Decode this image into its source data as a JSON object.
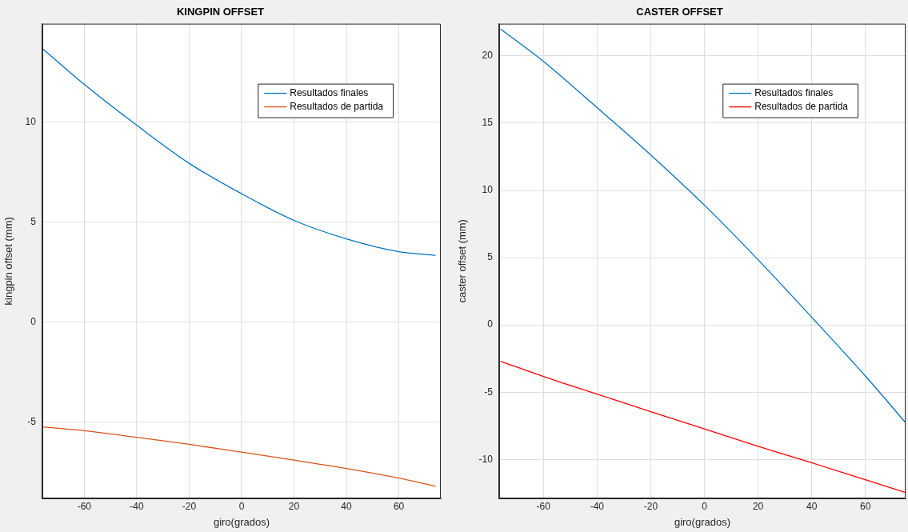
{
  "chart_data": [
    {
      "type": "line",
      "title": "KINGPIN OFFSET",
      "xlabel": "giro(grados)",
      "ylabel": "kingpin offset (mm)",
      "xlim": [
        -76,
        76
      ],
      "ylim": [
        -8.8,
        14.9
      ],
      "xticks": [
        -60,
        -40,
        -20,
        0,
        20,
        40,
        60
      ],
      "yticks": [
        -5,
        0,
        5,
        10
      ],
      "grid": true,
      "legend": "top right",
      "x": [
        -76,
        -60,
        -40,
        -20,
        0,
        20,
        40,
        60,
        74
      ],
      "series": [
        {
          "name": "Resultados finales",
          "color": "#0072bd",
          "values": [
            13.66,
            11.87,
            9.83,
            7.93,
            6.41,
            5.08,
            4.16,
            3.52,
            3.33
          ]
        },
        {
          "name": "Resultados de partida",
          "color": "#d95319",
          "values": [
            -5.23,
            -5.42,
            -5.75,
            -6.1,
            -6.49,
            -6.89,
            -7.31,
            -7.79,
            -8.19
          ]
        }
      ]
    },
    {
      "type": "line",
      "title": "CASTER OFFSET",
      "xlabel": "giro(grados)",
      "ylabel": "caster offset (mm)",
      "xlim": [
        -76.5,
        75
      ],
      "ylim": [
        -12.9,
        22.4
      ],
      "xticks": [
        -60,
        -40,
        -20,
        0,
        20,
        40,
        60
      ],
      "yticks": [
        -10,
        -5,
        0,
        5,
        10,
        15,
        20
      ],
      "grid": true,
      "legend": "top right",
      "x": [
        -76,
        -60,
        -40,
        -20,
        0,
        20,
        40,
        60,
        75
      ],
      "series": [
        {
          "name": "Resultados finales",
          "color": "#0072bd",
          "values": [
            22.0,
            19.6,
            16.16,
            12.64,
            8.91,
            4.85,
            0.57,
            -3.8,
            -7.27
          ]
        },
        {
          "name": "Resultados de partida",
          "color": "#ff0000",
          "values": [
            -2.7,
            -3.83,
            -5.14,
            -6.45,
            -7.73,
            -9.02,
            -10.25,
            -11.51,
            -12.46
          ]
        }
      ]
    }
  ]
}
